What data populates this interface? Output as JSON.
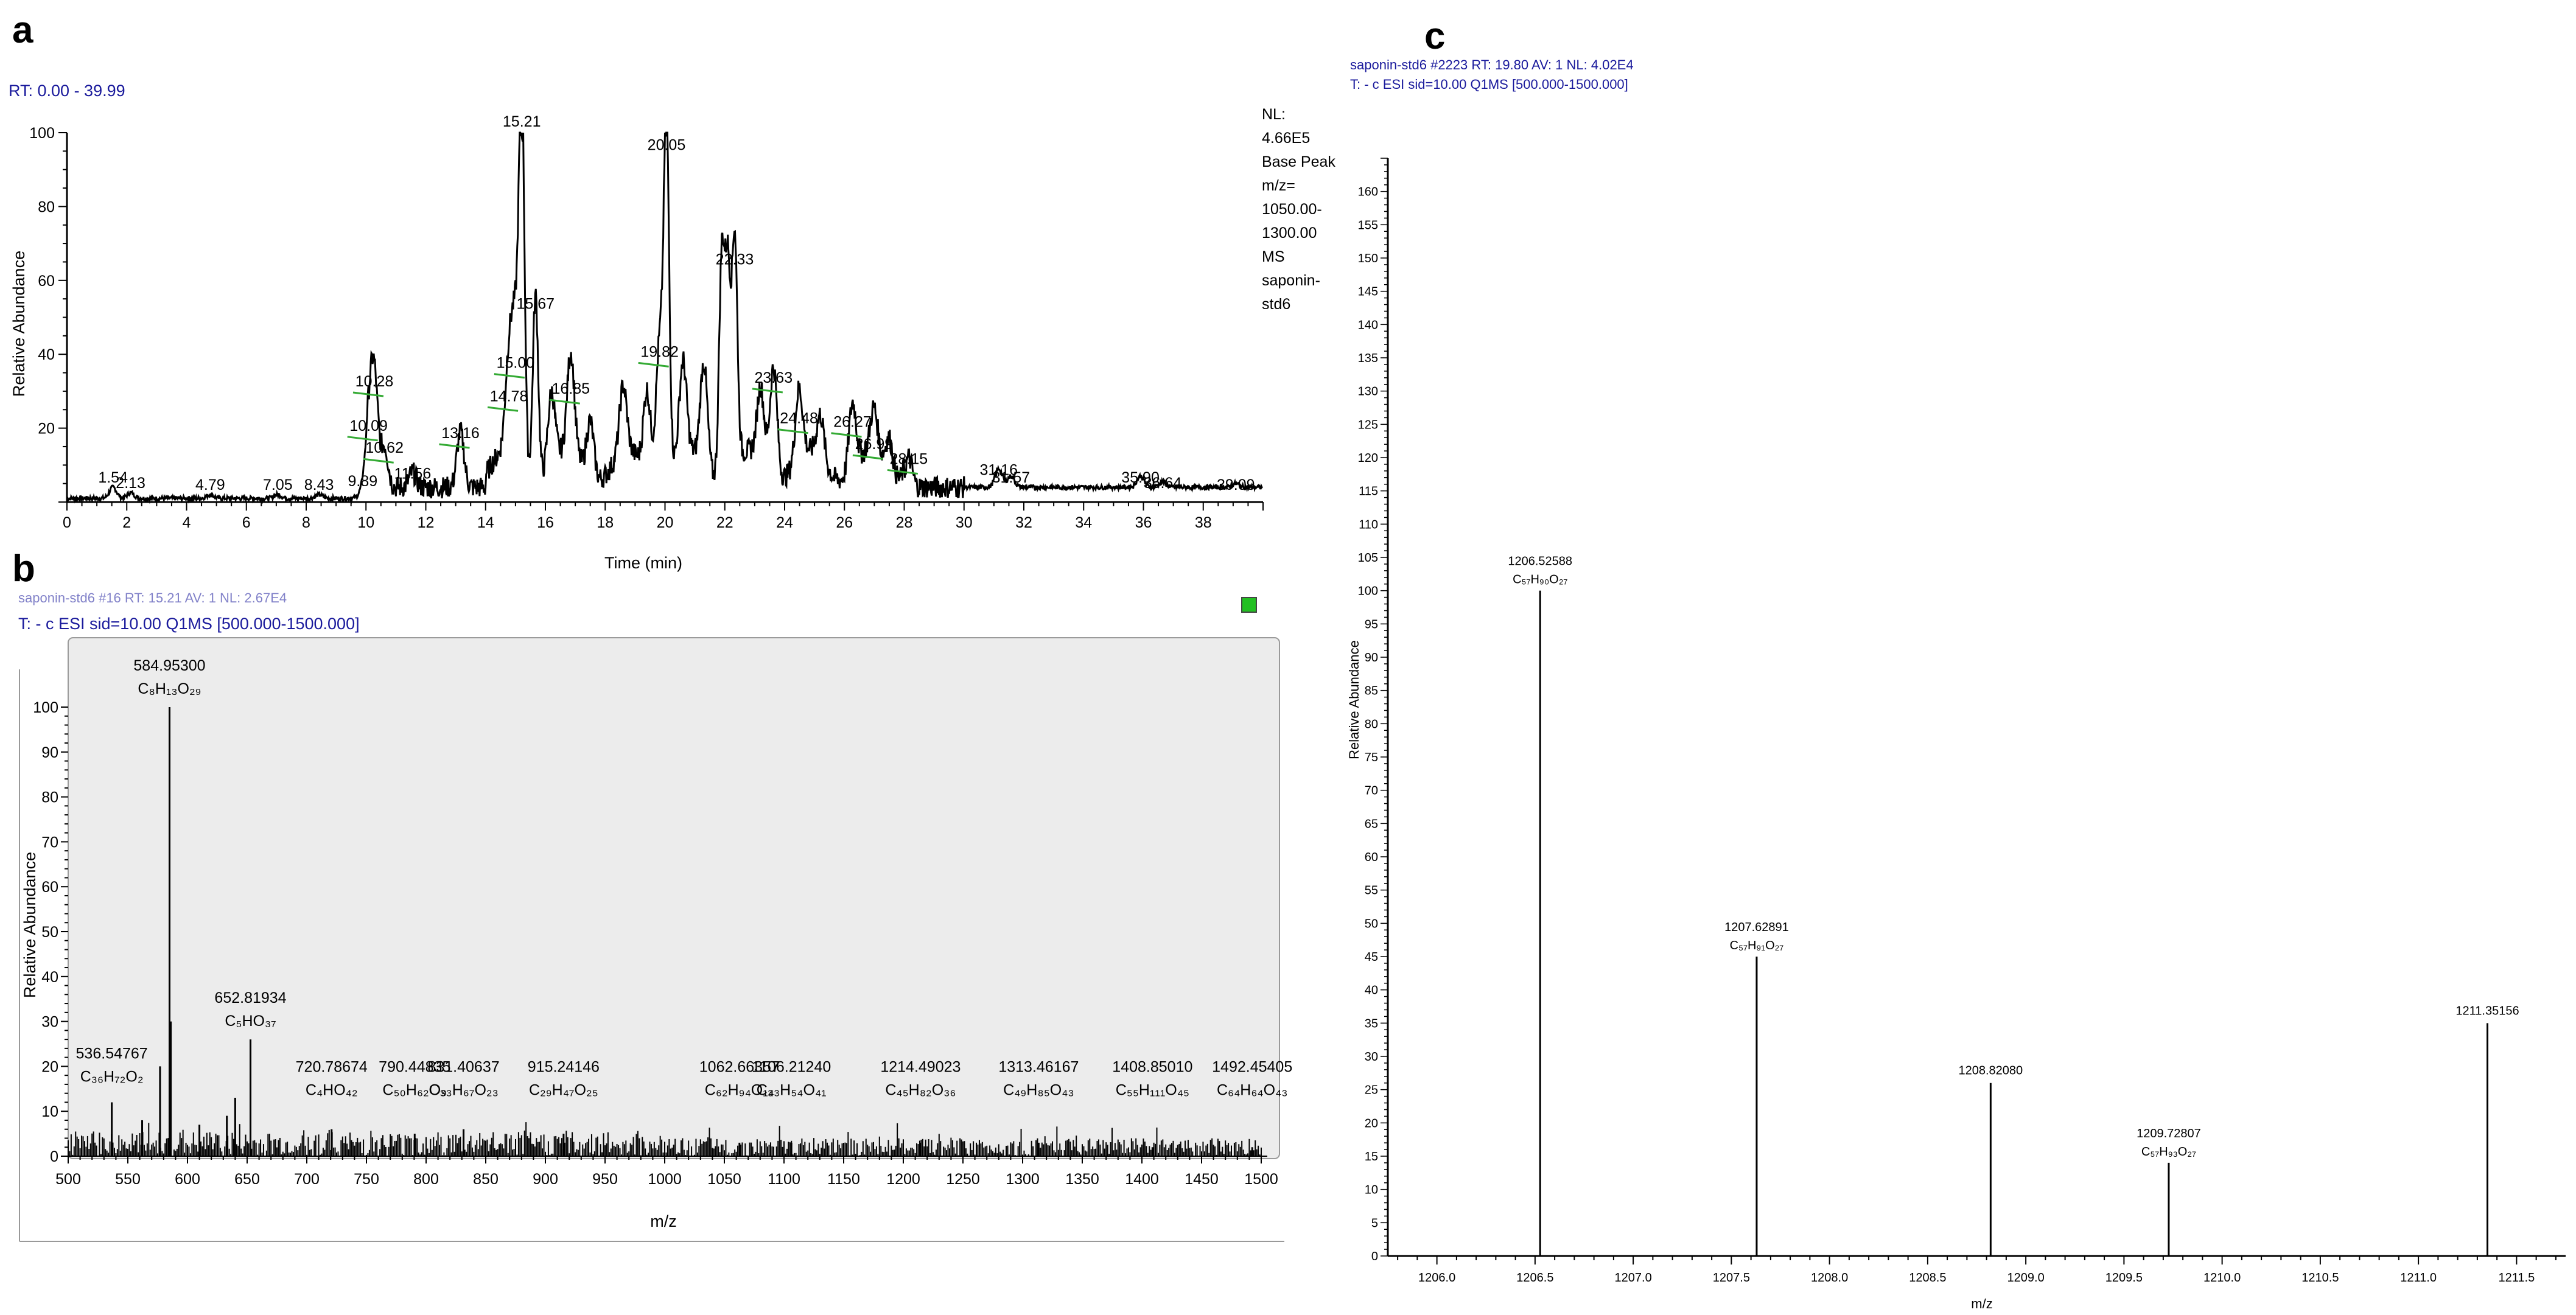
{
  "panels": {
    "a": "a",
    "b": "b",
    "c": "c"
  },
  "colors": {
    "trace": "#000000",
    "header_text": "#1a1a9c",
    "baseline_marker": "#33aa33",
    "panel_b_background": "#ececec",
    "panel_b_icon": "#22c022"
  },
  "chart_data": [
    {
      "id": "a",
      "type": "line",
      "header": "RT: 0.00 - 39.99",
      "xlabel": "Time (min)",
      "ylabel": "Relative Abundance",
      "xlim": [
        0,
        40
      ],
      "ylim": [
        0,
        100
      ],
      "xticks": [
        "0",
        "2",
        "4",
        "6",
        "8",
        "10",
        "12",
        "14",
        "16",
        "18",
        "20",
        "22",
        "24",
        "26",
        "28",
        "30",
        "32",
        "34",
        "36",
        "38"
      ],
      "yticks": [
        "20",
        "40",
        "60",
        "80",
        "100"
      ],
      "side_info": [
        "NL:",
        "4.66E5",
        "Base Peak",
        "m/z=",
        "1050.00-",
        "1300.00",
        "MS",
        "saponin-",
        "std6"
      ],
      "peaks": [
        {
          "x": 1.54,
          "y": 3,
          "label": "1.54"
        },
        {
          "x": 2.13,
          "y": 1.5,
          "label": "2.13"
        },
        {
          "x": 4.79,
          "y": 1,
          "label": "4.79"
        },
        {
          "x": 7.05,
          "y": 1,
          "label": "7.05"
        },
        {
          "x": 8.43,
          "y": 1,
          "label": "8.43"
        },
        {
          "x": 9.89,
          "y": 2,
          "label": "9.89"
        },
        {
          "x": 10.09,
          "y": 17,
          "label": "10.09"
        },
        {
          "x": 10.28,
          "y": 29,
          "label": "10.28"
        },
        {
          "x": 10.62,
          "y": 11,
          "label": "10.62"
        },
        {
          "x": 11.56,
          "y": 4,
          "label": "11.56"
        },
        {
          "x": 13.16,
          "y": 15,
          "label": "13.16"
        },
        {
          "x": 14.78,
          "y": 25,
          "label": "14.78"
        },
        {
          "x": 15.0,
          "y": 34,
          "label": "15.00"
        },
        {
          "x": 15.21,
          "y": 100,
          "label": "15.21"
        },
        {
          "x": 15.67,
          "y": 50,
          "label": "15.67"
        },
        {
          "x": 16.85,
          "y": 27,
          "label": "16.85"
        },
        {
          "x": 19.82,
          "y": 37,
          "label": "19.82"
        },
        {
          "x": 20.05,
          "y": 93,
          "label": "20.05"
        },
        {
          "x": 22.33,
          "y": 62,
          "label": "22.33"
        },
        {
          "x": 23.63,
          "y": 30,
          "label": "23.63"
        },
        {
          "x": 24.48,
          "y": 19,
          "label": "24.48"
        },
        {
          "x": 26.27,
          "y": 18,
          "label": "26.27"
        },
        {
          "x": 26.99,
          "y": 12,
          "label": "26.99"
        },
        {
          "x": 28.15,
          "y": 8,
          "label": "28.15"
        },
        {
          "x": 31.16,
          "y": 5,
          "label": "31.16"
        },
        {
          "x": 31.57,
          "y": 3,
          "label": "31.57"
        },
        {
          "x": 35.9,
          "y": 3,
          "label": "35.90"
        },
        {
          "x": 36.64,
          "y": 1.5,
          "label": "36.64"
        },
        {
          "x": 39.09,
          "y": 1,
          "label": "39.09"
        }
      ],
      "extra_peaks": [
        {
          "x": 21.9,
          "y": 60
        },
        {
          "x": 22.1,
          "y": 55
        },
        {
          "x": 20.6,
          "y": 25
        },
        {
          "x": 21.3,
          "y": 28
        },
        {
          "x": 19.4,
          "y": 22
        },
        {
          "x": 18.6,
          "y": 18
        },
        {
          "x": 17.5,
          "y": 15
        },
        {
          "x": 16.2,
          "y": 20
        },
        {
          "x": 23.2,
          "y": 20
        },
        {
          "x": 25.2,
          "y": 12
        },
        {
          "x": 27.5,
          "y": 9
        }
      ]
    },
    {
      "id": "b",
      "type": "bar",
      "header_top": "saponin-std6 #16 RT: 15.21 AV: 1 NL: 2.67E4",
      "header": "T: - c ESI sid=10.00  Q1MS [500.000-1500.000]",
      "xlabel": "m/z",
      "ylabel": "Relative Abundance",
      "xlim": [
        500,
        1500
      ],
      "ylim": [
        0,
        100
      ],
      "xticks": [
        "500",
        "550",
        "600",
        "650",
        "700",
        "750",
        "800",
        "850",
        "900",
        "950",
        "1000",
        "1050",
        "1100",
        "1150",
        "1200",
        "1250",
        "1300",
        "1350",
        "1400",
        "1450",
        "1500"
      ],
      "yticks": [
        "0",
        "10",
        "20",
        "30",
        "40",
        "50",
        "60",
        "70",
        "80",
        "90",
        "100"
      ],
      "peaks": [
        {
          "x": 584.953,
          "y": 100,
          "mz": "584.95300",
          "formula": "C₈H₁₃O₂₉"
        },
        {
          "x": 652.81934,
          "y": 26,
          "mz": "652.81934",
          "formula": "C₅HO₃₇"
        },
        {
          "x": 536.54767,
          "y": 12,
          "mz": "536.54767",
          "formula": "C₃₆H₇₂O₂"
        },
        {
          "x": 720.78674,
          "y": 6,
          "mz": "720.78674",
          "formula": "C₄HO₄₂"
        },
        {
          "x": 790.44835,
          "y": 5,
          "mz": "790.44835",
          "formula": "C₅₀H₆₂O₉"
        },
        {
          "x": 831.40637,
          "y": 6,
          "mz": "831.40637",
          "formula": "C₃₃H₆₇O₂₃"
        },
        {
          "x": 915.24146,
          "y": 5,
          "mz": "915.24146",
          "formula": "C₂₉H₄₇O₂₅"
        },
        {
          "x": 1062.66357,
          "y": 3,
          "mz": "1062.66357",
          "formula": "C₆₂H₉₄O₁₄"
        },
        {
          "x": 1106.2124,
          "y": 3,
          "mz": "1106.21240",
          "formula": "C₃₃H₅₄O₄₁"
        },
        {
          "x": 1214.49023,
          "y": 3,
          "mz": "1214.49023",
          "formula": "C₄₅H₈₂O₃₆"
        },
        {
          "x": 1313.46167,
          "y": 3,
          "mz": "1313.46167",
          "formula": "C₄₉H₈₅O₄₃"
        },
        {
          "x": 1408.8501,
          "y": 2,
          "mz": "1408.85010",
          "formula": "C₅₅H₁₁₁O₄₅"
        },
        {
          "x": 1492.45405,
          "y": 2,
          "mz": "1492.45405",
          "formula": "C₆₄H₆₄O₄₃"
        }
      ],
      "extra_peaks": [
        {
          "x": 577,
          "y": 20
        },
        {
          "x": 586,
          "y": 30
        },
        {
          "x": 640,
          "y": 13
        },
        {
          "x": 633,
          "y": 9
        },
        {
          "x": 562,
          "y": 8
        },
        {
          "x": 610,
          "y": 7
        }
      ]
    },
    {
      "id": "c",
      "type": "bar",
      "header_top": "saponin-std6 #2223 RT: 19.80 AV: 1 NL: 4.02E4",
      "header": "T: - c ESI sid=10.00 Q1MS [500.000-1500.000]",
      "xlabel": "m/z",
      "ylabel": "Relative Abundance",
      "xlim": [
        1205.75,
        1211.75
      ],
      "ylim": [
        0,
        165
      ],
      "xticks": [
        "1206.0",
        "1206.5",
        "1207.0",
        "1207.5",
        "1208.0",
        "1208.5",
        "1209.0",
        "1209.5",
        "1210.0",
        "1210.5",
        "1211.0",
        "1211.5"
      ],
      "yticks": [
        "0",
        "5",
        "10",
        "15",
        "20",
        "25",
        "30",
        "35",
        "40",
        "45",
        "50",
        "55",
        "60",
        "65",
        "70",
        "75",
        "80",
        "85",
        "90",
        "95",
        "100",
        "105",
        "110",
        "115",
        "120",
        "125",
        "130",
        "135",
        "140",
        "145",
        "150",
        "155",
        "160"
      ],
      "peaks": [
        {
          "x": 1206.52588,
          "y": 100,
          "mz": "1206.52588",
          "formula": "C₅₇H₉₀O₂₇"
        },
        {
          "x": 1207.62891,
          "y": 45,
          "mz": "1207.62891",
          "formula": "C₅₇H₉₁O₂₇"
        },
        {
          "x": 1208.8208,
          "y": 26,
          "mz": "1208.82080",
          "formula": ""
        },
        {
          "x": 1209.72807,
          "y": 14,
          "mz": "1209.72807",
          "formula": "C₅₇H₉₃O₂₇"
        },
        {
          "x": 1211.35156,
          "y": 35,
          "mz": "1211.35156",
          "formula": ""
        }
      ]
    }
  ]
}
